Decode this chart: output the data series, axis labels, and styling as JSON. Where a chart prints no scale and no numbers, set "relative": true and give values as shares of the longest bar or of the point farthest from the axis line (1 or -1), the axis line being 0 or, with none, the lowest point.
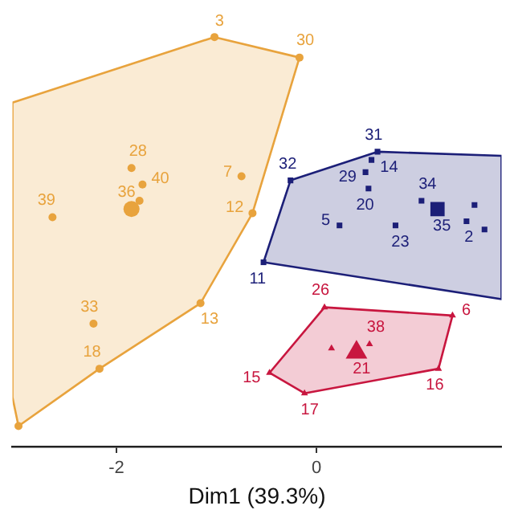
{
  "chart_data": {
    "type": "scatter",
    "xlabel": "Dim1 (39.3%)",
    "relative": true,
    "xlim": [
      -3.04,
      1.85
    ],
    "xticks": [
      -2,
      0
    ],
    "grid": false,
    "legend": false,
    "series": [
      {
        "type": "area",
        "color": "#e8a33d",
        "x": [
          -3.04,
          -1.02,
          -0.17,
          -0.64,
          -1.16,
          -2.17,
          -2.98,
          -3.04
        ],
        "values": [
          0.84,
          1,
          0.95,
          0.57,
          0.35,
          0.19,
          0.05,
          0.12
        ]
      },
      {
        "type": "area",
        "color": "#1c1f78",
        "x": [
          -0.26,
          0.61,
          1.85,
          1.85,
          -0.53
        ],
        "values": [
          0.65,
          0.72,
          0.71,
          0.36,
          0.45
        ]
      },
      {
        "type": "area",
        "color": "#c8163f",
        "x": [
          0.08,
          1.36,
          1.22,
          -0.12,
          -0.47
        ],
        "values": [
          0.34,
          0.32,
          0.19,
          0.13,
          0.18
        ]
      },
      {
        "type": "scatter",
        "marker": "circle",
        "color": "#e8a33d",
        "x": [
          -1.02,
          -0.17,
          -1.85,
          -1.74,
          -1.77,
          -2.64,
          -0.75,
          -0.64,
          -1.16,
          -2.23,
          -2.17,
          -2.98
        ],
        "values": [
          1,
          0.95,
          0.68,
          0.64,
          0.6,
          0.56,
          0.66,
          0.57,
          0.35,
          0.3,
          0.19,
          0.05
        ]
      },
      {
        "type": "bubble",
        "marker": "circle",
        "color": "#e8a33d",
        "x": [
          -1.85
        ],
        "values": [
          0.58
        ],
        "sizes": [
          1
        ]
      },
      {
        "type": "scatter",
        "marker": "square",
        "color": "#1c1f78",
        "x": [
          0.61,
          0.55,
          -0.26,
          0.49,
          0.52,
          1.05,
          0.23,
          0.79,
          1.58,
          1.5,
          1.68,
          -0.53
        ],
        "values": [
          0.72,
          0.7,
          0.65,
          0.67,
          0.63,
          0.6,
          0.54,
          0.54,
          0.59,
          0.55,
          0.53,
          0.45
        ]
      },
      {
        "type": "bubble",
        "marker": "square",
        "color": "#1c1f78",
        "x": [
          1.21
        ],
        "values": [
          0.58
        ],
        "sizes": [
          1
        ]
      },
      {
        "type": "scatter",
        "marker": "triangle",
        "color": "#c8163f",
        "x": [
          0.08,
          1.36,
          1.22,
          -0.12,
          -0.47,
          0.15,
          0.53
        ],
        "values": [
          0.34,
          0.32,
          0.19,
          0.13,
          0.18,
          0.24,
          0.25
        ]
      },
      {
        "type": "bubble",
        "marker": "triangle",
        "color": "#c8163f",
        "x": [
          0.4
        ],
        "values": [
          0.23
        ],
        "sizes": [
          1
        ]
      }
    ],
    "annotations": [
      {
        "text": "3",
        "x": -1.02,
        "y": 1
      },
      {
        "text": "30",
        "x": -0.17,
        "y": 0.95
      },
      {
        "text": "28",
        "x": -1.85,
        "y": 0.68
      },
      {
        "text": "40",
        "x": -1.74,
        "y": 0.64
      },
      {
        "text": "36",
        "x": -1.85,
        "y": 0.58
      },
      {
        "text": "39",
        "x": -2.64,
        "y": 0.56
      },
      {
        "text": "7",
        "x": -0.75,
        "y": 0.66
      },
      {
        "text": "12",
        "x": -0.64,
        "y": 0.57
      },
      {
        "text": "13",
        "x": -1.16,
        "y": 0.35
      },
      {
        "text": "33",
        "x": -2.23,
        "y": 0.3
      },
      {
        "text": "18",
        "x": -2.17,
        "y": 0.19
      },
      {
        "text": "31",
        "x": 0.61,
        "y": 0.72
      },
      {
        "text": "14",
        "x": 0.55,
        "y": 0.7
      },
      {
        "text": "32",
        "x": -0.26,
        "y": 0.65
      },
      {
        "text": "29",
        "x": 0.49,
        "y": 0.67
      },
      {
        "text": "20",
        "x": 0.52,
        "y": 0.63
      },
      {
        "text": "34",
        "x": 1.05,
        "y": 0.6
      },
      {
        "text": "5",
        "x": 0.23,
        "y": 0.54
      },
      {
        "text": "23",
        "x": 0.79,
        "y": 0.54
      },
      {
        "text": "35",
        "x": 1.21,
        "y": 0.58
      },
      {
        "text": "2",
        "x": 1.5,
        "y": 0.55
      },
      {
        "text": "11",
        "x": -0.53,
        "y": 0.45
      },
      {
        "text": "26",
        "x": 0.08,
        "y": 0.34
      },
      {
        "text": "6",
        "x": 1.36,
        "y": 0.32
      },
      {
        "text": "16",
        "x": 1.22,
        "y": 0.19
      },
      {
        "text": "17",
        "x": -0.12,
        "y": 0.13
      },
      {
        "text": "15",
        "x": -0.47,
        "y": 0.18
      },
      {
        "text": "21",
        "x": 0.4,
        "y": 0.23
      },
      {
        "text": "38",
        "x": 0.53,
        "y": 0.25
      }
    ]
  }
}
